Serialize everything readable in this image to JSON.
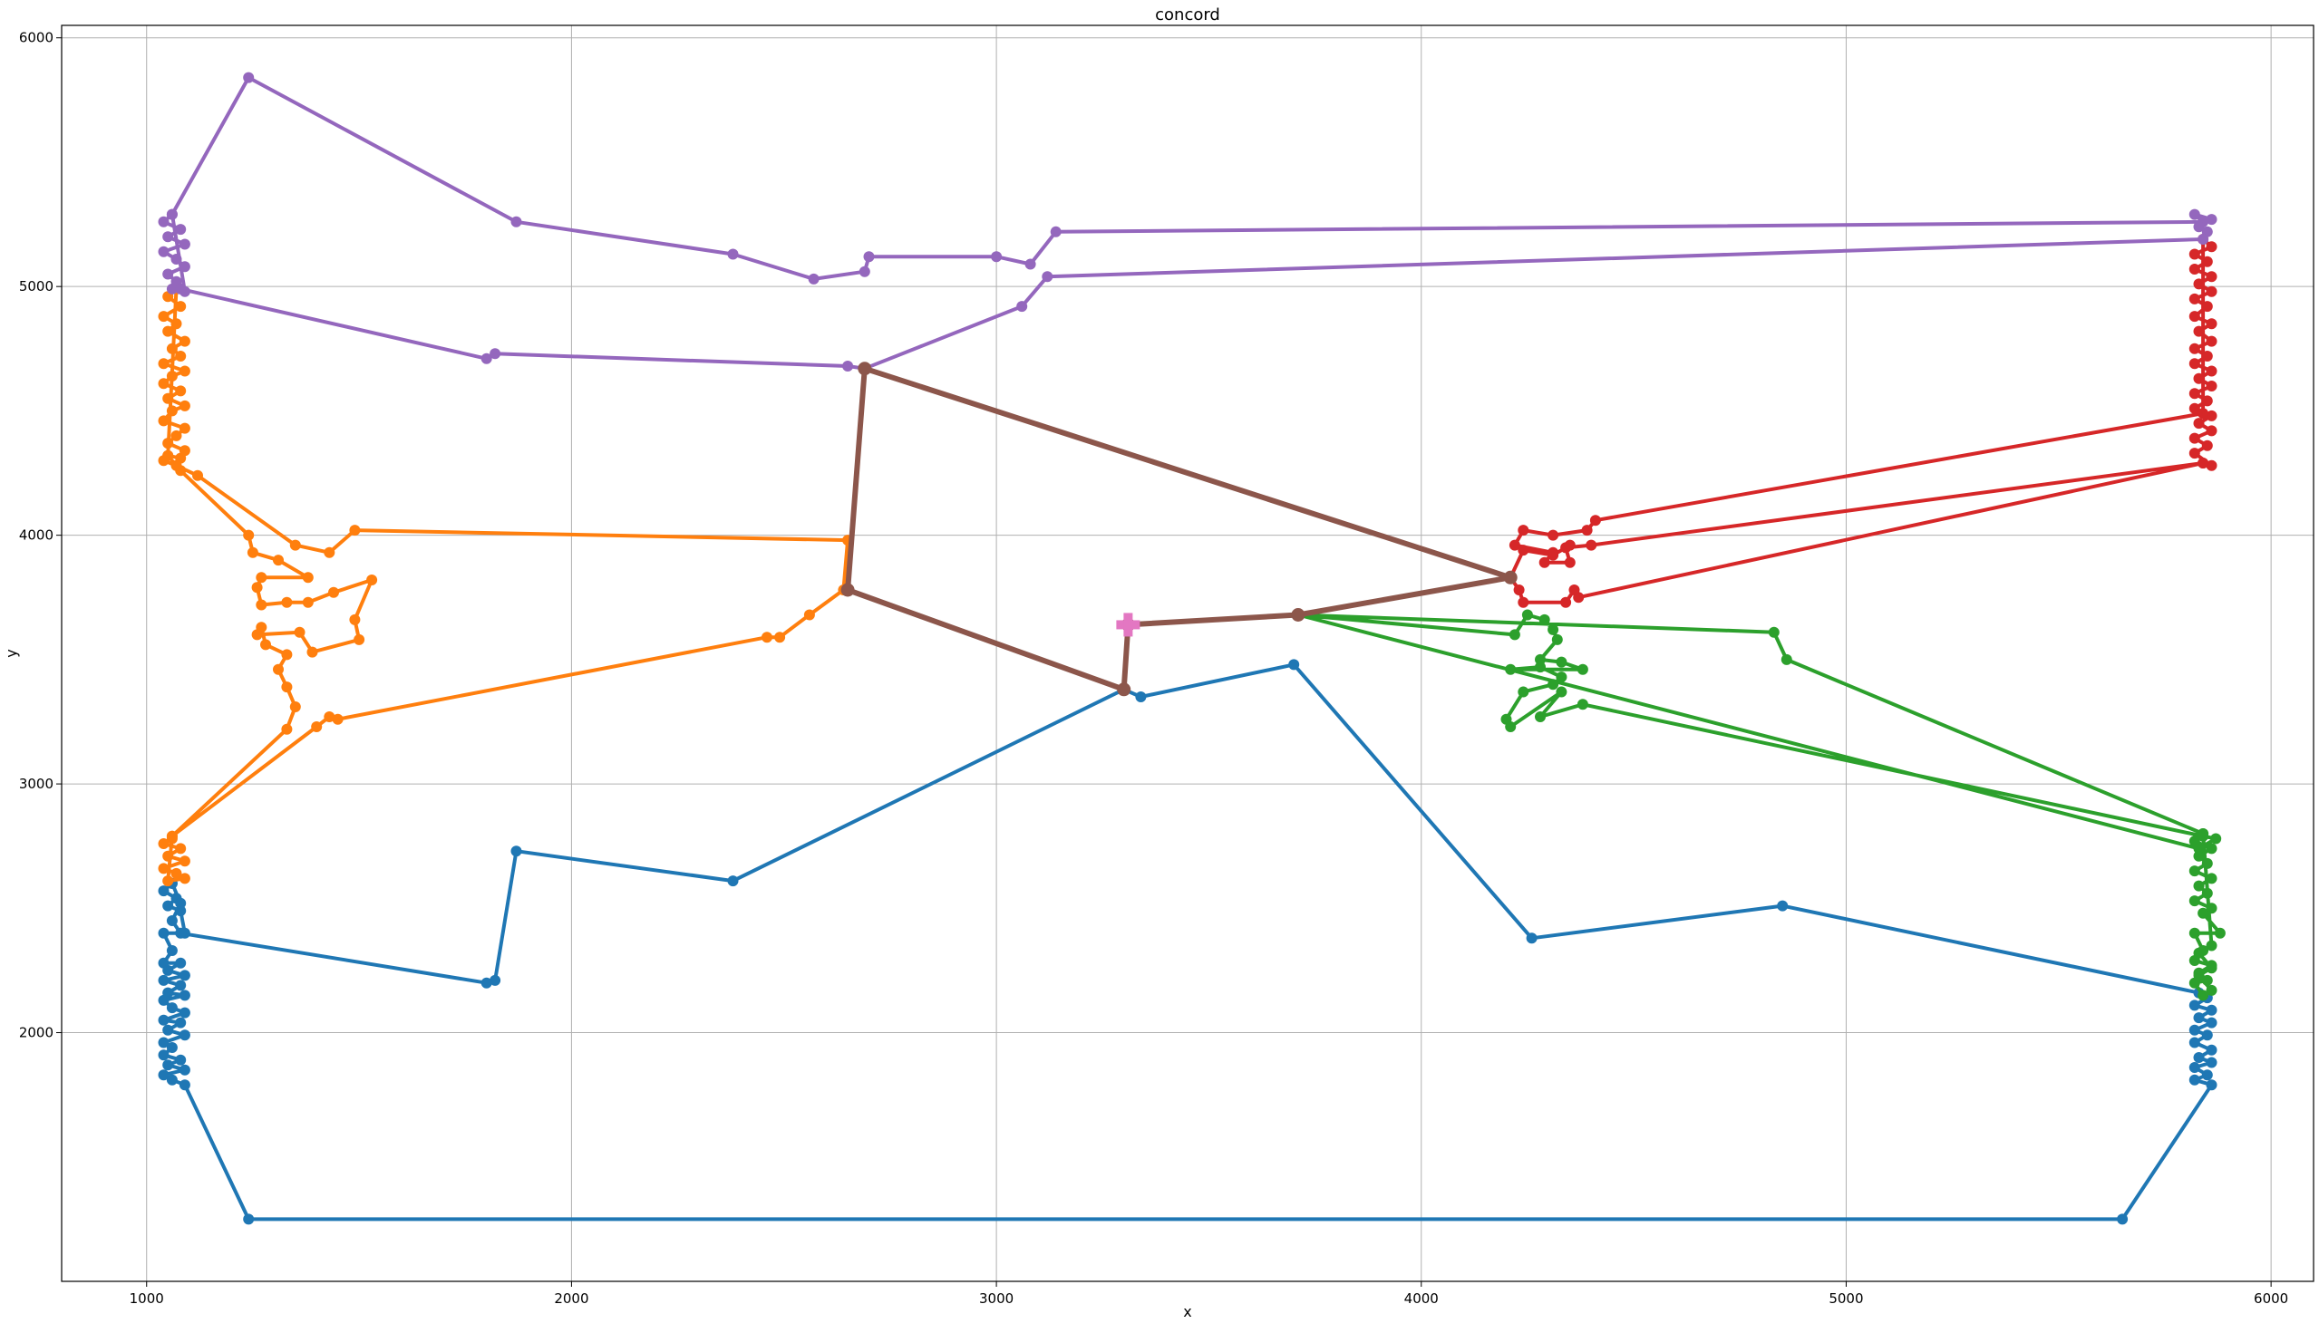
{
  "chart_data": {
    "type": "line",
    "title": "concord",
    "xlabel": "x",
    "ylabel": "y",
    "xlim": [
      800,
      6100
    ],
    "ylim": [
      1000,
      6050
    ],
    "xticks": [
      1000,
      2000,
      3000,
      4000,
      5000,
      6000
    ],
    "yticks": [
      2000,
      3000,
      4000,
      5000,
      6000
    ],
    "grid": true,
    "legend": "none",
    "series": [
      {
        "color": "#1f77b4",
        "points": [
          [
            1060,
            2600
          ],
          [
            1040,
            2570
          ],
          [
            1070,
            2540
          ],
          [
            1050,
            2510
          ],
          [
            1080,
            2490
          ],
          [
            1090,
            2400
          ],
          [
            1040,
            2400
          ],
          [
            1060,
            2330
          ],
          [
            1040,
            2280
          ],
          [
            1080,
            2280
          ],
          [
            1050,
            2250
          ],
          [
            1090,
            2230
          ],
          [
            1040,
            2210
          ],
          [
            1080,
            2190
          ],
          [
            1050,
            2160
          ],
          [
            1090,
            2150
          ],
          [
            1040,
            2130
          ],
          [
            1060,
            2100
          ],
          [
            1090,
            2080
          ],
          [
            1040,
            2050
          ],
          [
            1080,
            2040
          ],
          [
            1050,
            2010
          ],
          [
            1090,
            1990
          ],
          [
            1040,
            1960
          ],
          [
            1060,
            1940
          ],
          [
            1040,
            1910
          ],
          [
            1080,
            1890
          ],
          [
            1050,
            1870
          ],
          [
            1090,
            1850
          ],
          [
            1040,
            1830
          ],
          [
            1060,
            1810
          ],
          [
            1090,
            1790
          ],
          [
            1240,
            1250
          ],
          [
            5650,
            1250
          ],
          [
            5860,
            1790
          ],
          [
            5820,
            1810
          ],
          [
            5850,
            1830
          ],
          [
            5820,
            1860
          ],
          [
            5860,
            1880
          ],
          [
            5830,
            1900
          ],
          [
            5860,
            1930
          ],
          [
            5820,
            1960
          ],
          [
            5850,
            1990
          ],
          [
            5820,
            2010
          ],
          [
            5860,
            2040
          ],
          [
            5830,
            2060
          ],
          [
            5860,
            2090
          ],
          [
            5820,
            2110
          ],
          [
            5850,
            2140
          ],
          [
            5830,
            2160
          ],
          [
            4850,
            2510
          ],
          [
            4260,
            2380
          ],
          [
            3700,
            3480
          ],
          [
            3340,
            3350
          ],
          [
            3300,
            3380
          ],
          [
            2380,
            2610
          ],
          [
            1870,
            2730
          ],
          [
            1820,
            2210
          ],
          [
            1800,
            2200
          ],
          [
            1080,
            2400
          ],
          [
            1060,
            2450
          ],
          [
            1080,
            2520
          ],
          [
            1060,
            2600
          ]
        ]
      },
      {
        "color": "#ff7f0e",
        "points": [
          [
            1060,
            2780
          ],
          [
            1040,
            2760
          ],
          [
            1080,
            2740
          ],
          [
            1050,
            2710
          ],
          [
            1090,
            2690
          ],
          [
            1040,
            2660
          ],
          [
            1070,
            2640
          ],
          [
            1090,
            2620
          ],
          [
            1050,
            2610
          ],
          [
            1060,
            2790
          ],
          [
            1330,
            3220
          ],
          [
            1350,
            3310
          ],
          [
            1330,
            3390
          ],
          [
            1310,
            3460
          ],
          [
            1330,
            3520
          ],
          [
            1280,
            3560
          ],
          [
            1270,
            3630
          ],
          [
            1260,
            3600
          ],
          [
            1360,
            3610
          ],
          [
            1390,
            3530
          ],
          [
            1500,
            3580
          ],
          [
            1490,
            3660
          ],
          [
            1530,
            3820
          ],
          [
            1440,
            3770
          ],
          [
            1380,
            3730
          ],
          [
            1330,
            3730
          ],
          [
            1270,
            3720
          ],
          [
            1260,
            3790
          ],
          [
            1270,
            3830
          ],
          [
            1380,
            3830
          ],
          [
            1310,
            3900
          ],
          [
            1250,
            3930
          ],
          [
            1240,
            4000
          ],
          [
            1080,
            4260
          ],
          [
            1050,
            4320
          ],
          [
            1080,
            4310
          ],
          [
            1090,
            4340
          ],
          [
            1050,
            4370
          ],
          [
            1070,
            4400
          ],
          [
            1090,
            4430
          ],
          [
            1040,
            4460
          ],
          [
            1060,
            4500
          ],
          [
            1090,
            4520
          ],
          [
            1050,
            4550
          ],
          [
            1080,
            4580
          ],
          [
            1040,
            4610
          ],
          [
            1060,
            4640
          ],
          [
            1090,
            4660
          ],
          [
            1040,
            4690
          ],
          [
            1080,
            4720
          ],
          [
            1060,
            4750
          ],
          [
            1090,
            4780
          ],
          [
            1050,
            4820
          ],
          [
            1070,
            4850
          ],
          [
            1040,
            4880
          ],
          [
            1080,
            4920
          ],
          [
            1050,
            4960
          ],
          [
            1070,
            4990
          ],
          [
            1050,
            4320
          ],
          [
            1040,
            4300
          ],
          [
            1070,
            4280
          ],
          [
            1120,
            4240
          ],
          [
            1350,
            3960
          ],
          [
            1430,
            3930
          ],
          [
            1490,
            4020
          ],
          [
            2650,
            3980
          ],
          [
            2640,
            3780
          ],
          [
            2560,
            3680
          ],
          [
            2490,
            3590
          ],
          [
            2460,
            3590
          ],
          [
            1450,
            3260
          ],
          [
            1430,
            3270
          ],
          [
            1400,
            3230
          ],
          [
            1060,
            2790
          ]
        ]
      },
      {
        "color": "#2ca02c",
        "points": [
          [
            5840,
            2800
          ],
          [
            5820,
            2770
          ],
          [
            5860,
            2740
          ],
          [
            5830,
            2710
          ],
          [
            5850,
            2680
          ],
          [
            5820,
            2650
          ],
          [
            5860,
            2620
          ],
          [
            5830,
            2590
          ],
          [
            5850,
            2560
          ],
          [
            5820,
            2530
          ],
          [
            5860,
            2500
          ],
          [
            5840,
            2480
          ],
          [
            5880,
            2400
          ],
          [
            5820,
            2400
          ],
          [
            5840,
            2330
          ],
          [
            5820,
            2290
          ],
          [
            5860,
            2270
          ],
          [
            5830,
            2240
          ],
          [
            5850,
            2210
          ],
          [
            5820,
            2200
          ],
          [
            5840,
            2150
          ],
          [
            5860,
            2170
          ],
          [
            5830,
            2230
          ],
          [
            5860,
            2260
          ],
          [
            5830,
            2320
          ],
          [
            5860,
            2350
          ],
          [
            5840,
            2800
          ],
          [
            4860,
            3500
          ],
          [
            4830,
            3610
          ],
          [
            3710,
            3680
          ],
          [
            4220,
            3600
          ],
          [
            4250,
            3680
          ],
          [
            4290,
            3660
          ],
          [
            4310,
            3620
          ],
          [
            4320,
            3580
          ],
          [
            4280,
            3500
          ],
          [
            4330,
            3490
          ],
          [
            4380,
            3460
          ],
          [
            4210,
            3460
          ],
          [
            4280,
            3470
          ],
          [
            4330,
            3430
          ],
          [
            4310,
            3400
          ],
          [
            4240,
            3370
          ],
          [
            4200,
            3260
          ],
          [
            4210,
            3230
          ],
          [
            4330,
            3370
          ],
          [
            4280,
            3270
          ],
          [
            4380,
            3320
          ],
          [
            5840,
            2790
          ],
          [
            5870,
            2780
          ],
          [
            5830,
            2740
          ],
          [
            3710,
            3680
          ]
        ]
      },
      {
        "color": "#d62728",
        "points": [
          [
            5840,
            4290
          ],
          [
            5860,
            4280
          ],
          [
            5820,
            4330
          ],
          [
            5850,
            4360
          ],
          [
            5820,
            4390
          ],
          [
            5860,
            4420
          ],
          [
            5830,
            4450
          ],
          [
            5860,
            4480
          ],
          [
            5820,
            4510
          ],
          [
            5850,
            4540
          ],
          [
            5820,
            4570
          ],
          [
            5860,
            4600
          ],
          [
            5830,
            4630
          ],
          [
            5860,
            4660
          ],
          [
            5820,
            4690
          ],
          [
            5850,
            4720
          ],
          [
            5820,
            4750
          ],
          [
            5860,
            4780
          ],
          [
            5830,
            4820
          ],
          [
            5860,
            4850
          ],
          [
            5820,
            4880
          ],
          [
            5850,
            4920
          ],
          [
            5820,
            4950
          ],
          [
            5860,
            4980
          ],
          [
            5830,
            5010
          ],
          [
            5860,
            5040
          ],
          [
            5820,
            5070
          ],
          [
            5850,
            5100
          ],
          [
            5820,
            5130
          ],
          [
            5860,
            5160
          ],
          [
            5840,
            5190
          ],
          [
            5840,
            4490
          ],
          [
            4410,
            4060
          ],
          [
            4390,
            4020
          ],
          [
            4310,
            4000
          ],
          [
            4240,
            4020
          ],
          [
            4220,
            3960
          ],
          [
            4310,
            3930
          ],
          [
            4290,
            3890
          ],
          [
            4350,
            3890
          ],
          [
            4340,
            3950
          ],
          [
            4400,
            3960
          ],
          [
            5840,
            4290
          ],
          [
            4370,
            3750
          ],
          [
            4360,
            3780
          ],
          [
            4340,
            3730
          ],
          [
            4240,
            3730
          ],
          [
            4230,
            3780
          ],
          [
            4210,
            3830
          ],
          [
            4240,
            3940
          ],
          [
            4310,
            3920
          ],
          [
            4350,
            3960
          ]
        ]
      },
      {
        "color": "#9467bd",
        "points": [
          [
            1060,
            5290
          ],
          [
            1040,
            5260
          ],
          [
            1080,
            5230
          ],
          [
            1050,
            5200
          ],
          [
            1090,
            5170
          ],
          [
            1040,
            5140
          ],
          [
            1070,
            5110
          ],
          [
            1090,
            5080
          ],
          [
            1050,
            5050
          ],
          [
            1070,
            5020
          ],
          [
            1060,
            4990
          ],
          [
            1090,
            4980
          ],
          [
            1060,
            5290
          ],
          [
            1240,
            5840
          ],
          [
            1870,
            5260
          ],
          [
            2380,
            5130
          ],
          [
            2570,
            5030
          ],
          [
            2690,
            5060
          ],
          [
            2700,
            5120
          ],
          [
            3000,
            5120
          ],
          [
            3080,
            5090
          ],
          [
            3140,
            5220
          ],
          [
            5840,
            5260
          ],
          [
            5820,
            5290
          ],
          [
            5860,
            5270
          ],
          [
            5830,
            5240
          ],
          [
            5850,
            5220
          ],
          [
            5840,
            5190
          ],
          [
            3120,
            5040
          ],
          [
            3060,
            4920
          ],
          [
            2690,
            4670
          ],
          [
            2650,
            4680
          ],
          [
            1820,
            4730
          ],
          [
            1800,
            4710
          ],
          [
            1080,
            4990
          ]
        ]
      },
      {
        "color": "#8c564b",
        "thick": true,
        "points": [
          [
            3310,
            3640
          ],
          [
            3300,
            3380
          ],
          [
            2650,
            3780
          ],
          [
            2690,
            4670
          ],
          [
            4210,
            3830
          ],
          [
            3710,
            3680
          ],
          [
            3310,
            3640
          ]
        ]
      }
    ],
    "marker": {
      "color": "#e377c2",
      "shape": "plus",
      "x": 3310,
      "y": 3640
    }
  }
}
